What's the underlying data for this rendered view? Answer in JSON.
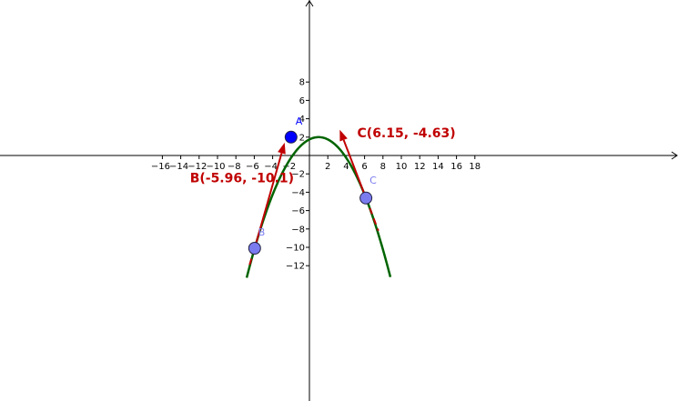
{
  "chart_data": {
    "type": "line",
    "title": "",
    "xlabel": "",
    "ylabel": "",
    "xlim": [
      -17,
      20
    ],
    "ylim": [
      -13,
      8.5
    ],
    "x_ticks": [
      -16,
      -14,
      -12,
      -10,
      -8,
      -6,
      -4,
      -2,
      2,
      4,
      6,
      8,
      10,
      12,
      14,
      16,
      18
    ],
    "y_ticks": [
      8,
      6,
      4,
      2,
      -2,
      -4,
      -6,
      -8,
      -10,
      -12
    ],
    "curve": {
      "expression": "y = -0.25*(x-1)^2 + 2",
      "vertex": [
        1,
        2
      ],
      "a": -0.25,
      "color": "#006400"
    },
    "points": [
      {
        "name": "A",
        "x": -2,
        "y": 2,
        "color": "#0000ff",
        "label_color": "#0000ff"
      },
      {
        "name": "B",
        "x": -5.96,
        "y": -10.1,
        "color": "#7b7bf0",
        "label_color": "#7b7bf0"
      },
      {
        "name": "C",
        "x": 6.15,
        "y": -4.63,
        "color": "#7b7bf0",
        "label_color": "#7b7bf0"
      }
    ],
    "vectors": [
      {
        "from": [
          -5.96,
          -10.1
        ],
        "to": [
          -2.7,
          1.4
        ],
        "color": "#c00000"
      },
      {
        "from": [
          6.15,
          -4.63
        ],
        "to": [
          3.3,
          2.8
        ],
        "color": "#c00000"
      }
    ],
    "tangent_dashes": [
      {
        "from": [
          -5.96,
          -10.1
        ],
        "to": [
          -6.6,
          -12.2
        ],
        "color": "#c00000"
      },
      {
        "from": [
          6.15,
          -4.63
        ],
        "to": [
          7.5,
          -8.2
        ],
        "color": "#c00000"
      }
    ],
    "annotations": [
      {
        "text": "B(-5.96, -10.1)",
        "x": -13.0,
        "y": -2.9
      },
      {
        "text": "C(6.15, -4.63)",
        "x": 5.2,
        "y": 2.0
      }
    ],
    "colors": {
      "axis": "#000000",
      "curve": "#006400",
      "vector": "#c00000"
    }
  }
}
